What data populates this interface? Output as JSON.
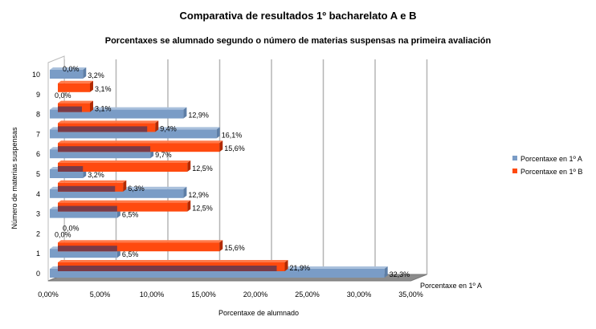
{
  "chart_data": {
    "type": "bar",
    "orientation": "horizontal",
    "title": "Comparativa de resultados 1º bacharelato A e B",
    "subtitle": "Porcentaxes se alumnado segundo o número de materias suspensas na primeira avaliación",
    "xlabel": "Porcentaxe de alumnado",
    "ylabel": "Número de materias suspensas",
    "xlim": [
      0,
      35
    ],
    "x_ticks": [
      "0,00%",
      "5,00%",
      "10,00%",
      "15,00%",
      "20,00%",
      "25,00%",
      "30,00%",
      "35,00%"
    ],
    "categories": [
      "0",
      "1",
      "2",
      "3",
      "4",
      "5",
      "6",
      "7",
      "8",
      "9",
      "10"
    ],
    "series": [
      {
        "name": "Porcentaxe en 1º A",
        "color": "#7a9cc6",
        "values": [
          32.3,
          6.5,
          0.0,
          6.5,
          12.9,
          3.2,
          9.7,
          16.1,
          12.9,
          0.0,
          3.2
        ],
        "labels": [
          "32,3%",
          "6,5%",
          "0,0%",
          "6,5%",
          "12,9%",
          "3,2%",
          "9,7%",
          "16,1%",
          "12,9%",
          "0,0%",
          "3,2%"
        ]
      },
      {
        "name": "Porcentaxe en 1º B",
        "color": "#ff4a0f",
        "values": [
          21.9,
          15.6,
          0.0,
          12.5,
          6.3,
          12.5,
          15.6,
          9.4,
          3.1,
          3.1,
          0.0
        ],
        "labels": [
          "21,9%",
          "15,6%",
          "0,0%",
          "12,5%",
          "6,3%",
          "12,5%",
          "15,6%",
          "9,4%",
          "3,1%",
          "3,1%",
          "0,0%"
        ]
      }
    ],
    "series_axis_label": "Porcentaxe en 1º A",
    "grid": true,
    "legend": "right"
  }
}
